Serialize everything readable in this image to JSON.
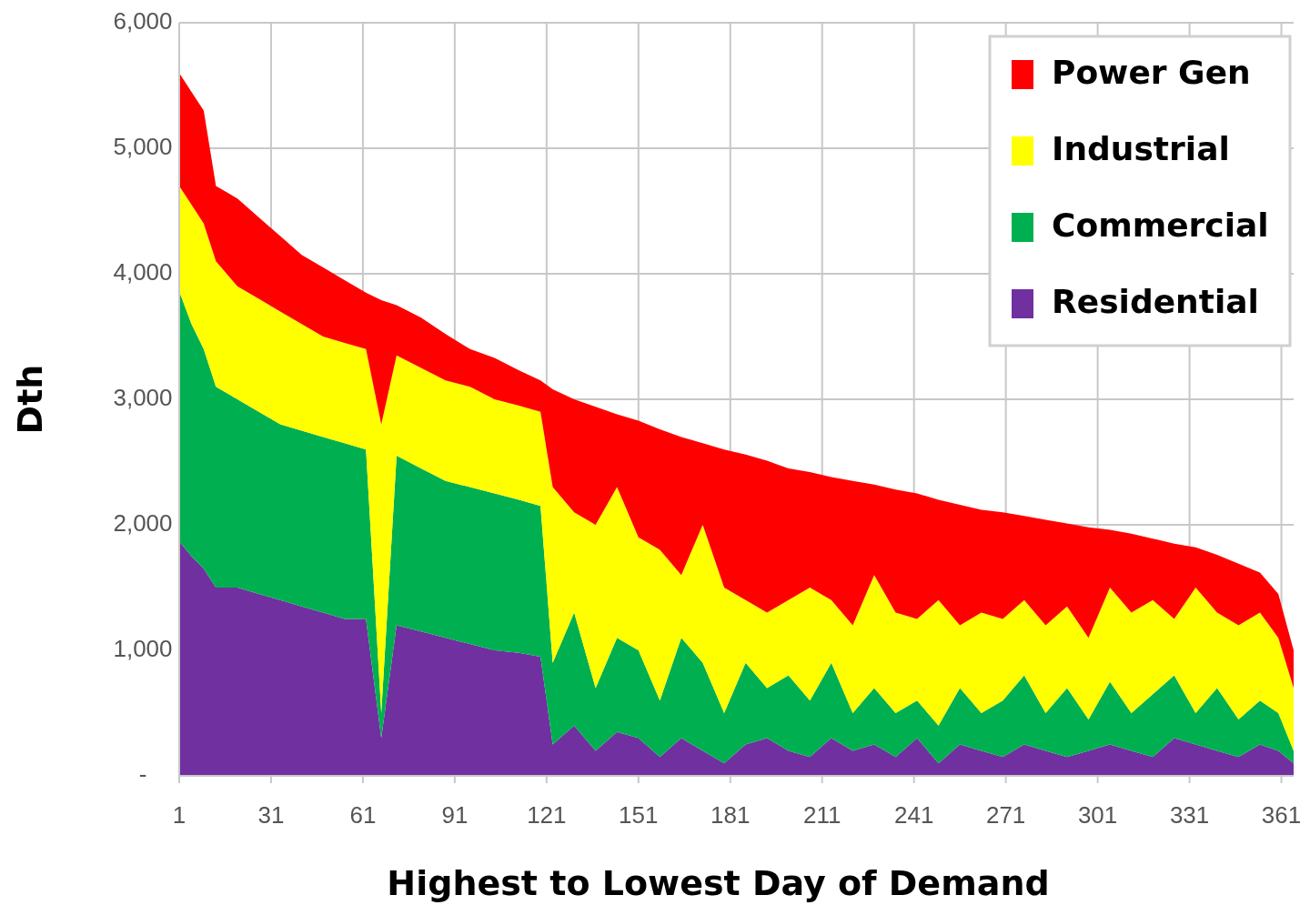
{
  "chart_data": {
    "type": "area",
    "stacked": true,
    "xlabel": "Highest to Lowest Day of Demand",
    "ylabel": "Dth",
    "x": [
      1,
      5,
      9,
      13,
      20,
      27,
      34,
      41,
      48,
      55,
      62,
      67,
      72,
      80,
      88,
      96,
      104,
      112,
      119,
      123,
      130,
      137,
      144,
      151,
      158,
      165,
      172,
      179,
      186,
      193,
      200,
      207,
      214,
      221,
      228,
      235,
      242,
      249,
      256,
      263,
      270,
      277,
      284,
      291,
      298,
      305,
      312,
      319,
      326,
      333,
      340,
      347,
      354,
      360,
      365
    ],
    "series": [
      {
        "name": "Residential",
        "color": "#7030a0",
        "values": [
          1870,
          1750,
          1650,
          1500,
          1500,
          1450,
          1400,
          1350,
          1300,
          1250,
          1250,
          300,
          1200,
          1150,
          1100,
          1050,
          1000,
          980,
          950,
          250,
          400,
          200,
          350,
          300,
          150,
          300,
          200,
          100,
          250,
          300,
          200,
          150,
          300,
          200,
          250,
          150,
          300,
          100,
          250,
          200,
          150,
          250,
          200,
          150,
          200,
          250,
          200,
          150,
          300,
          250,
          200,
          150,
          250,
          200,
          100
        ]
      },
      {
        "name": "Commercial",
        "color": "#00b050",
        "values": [
          1990,
          1850,
          1750,
          1600,
          1500,
          1450,
          1400,
          1400,
          1400,
          1400,
          1350,
          200,
          1350,
          1300,
          1250,
          1250,
          1250,
          1220,
          1200,
          650,
          900,
          500,
          750,
          700,
          450,
          800,
          700,
          400,
          650,
          400,
          600,
          450,
          600,
          300,
          450,
          350,
          300,
          300,
          450,
          300,
          450,
          550,
          300,
          550,
          250,
          500,
          300,
          500,
          500,
          250,
          500,
          300,
          350,
          300,
          100
        ]
      },
      {
        "name": "Industrial",
        "color": "#ffff00",
        "values": [
          840,
          950,
          1000,
          1000,
          900,
          900,
          900,
          850,
          800,
          800,
          800,
          2300,
          800,
          800,
          800,
          800,
          750,
          750,
          750,
          1400,
          800,
          1300,
          1200,
          900,
          1200,
          500,
          1100,
          1000,
          500,
          600,
          600,
          900,
          500,
          700,
          900,
          800,
          650,
          1000,
          500,
          800,
          650,
          600,
          700,
          650,
          650,
          750,
          800,
          750,
          450,
          1000,
          600,
          750,
          700,
          600,
          500
        ]
      },
      {
        "name": "Power Gen",
        "color": "#ff0000",
        "values": [
          900,
          900,
          900,
          600,
          700,
          650,
          600,
          550,
          550,
          500,
          450,
          990,
          400,
          400,
          370,
          300,
          330,
          280,
          250,
          780,
          900,
          940,
          580,
          930,
          960,
          1100,
          650,
          1100,
          1160,
          1210,
          1050,
          920,
          980,
          1150,
          720,
          980,
          1000,
          800,
          960,
          820,
          850,
          670,
          840,
          660,
          880,
          460,
          630,
          490,
          600,
          320,
          460,
          490,
          320,
          350,
          300
        ]
      }
    ],
    "xlim": [
      1,
      365
    ],
    "xticks": [
      1,
      31,
      61,
      91,
      121,
      151,
      181,
      211,
      241,
      271,
      301,
      331,
      361
    ],
    "ylim": [
      0,
      6000
    ],
    "yticks": [
      {
        "value": 0,
        "label": "-"
      },
      {
        "value": 1000,
        "label": "1,000"
      },
      {
        "value": 2000,
        "label": "2,000"
      },
      {
        "value": 3000,
        "label": "3,000"
      },
      {
        "value": 4000,
        "label": "4,000"
      },
      {
        "value": 5000,
        "label": "5,000"
      },
      {
        "value": 6000,
        "label": "6,000"
      }
    ],
    "grid": true,
    "legend": "top right"
  }
}
